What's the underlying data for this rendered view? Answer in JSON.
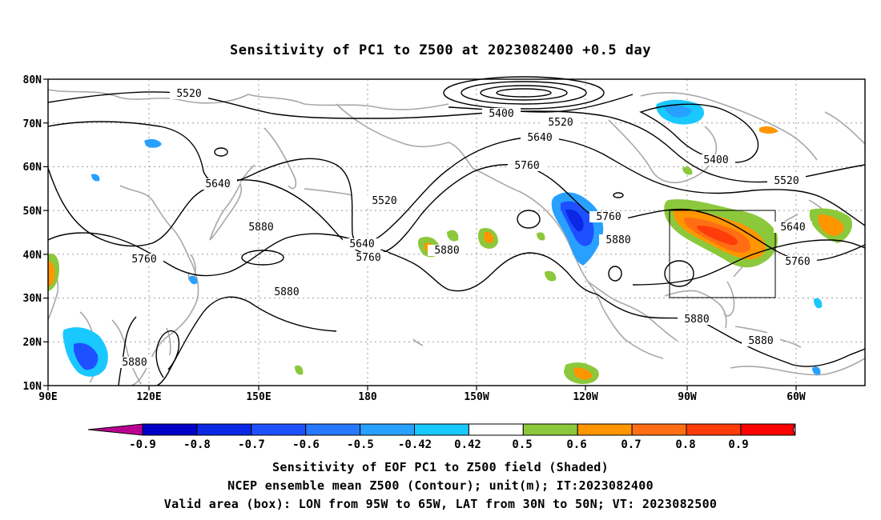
{
  "title": "Sensitivity of PC1 to Z500 at 2023082400 +0.5 day",
  "lat_ticks": [
    "80N",
    "70N",
    "60N",
    "50N",
    "40N",
    "30N",
    "20N",
    "10N"
  ],
  "lon_ticks": [
    "90E",
    "120E",
    "150E",
    "180",
    "150W",
    "120W",
    "90W",
    "60W"
  ],
  "contour_labels": [
    "5520",
    "5400",
    "5520",
    "5640",
    "5760",
    "5640",
    "5520",
    "5880",
    "5640",
    "5760",
    "5880",
    "5760",
    "5880",
    "5760",
    "5880",
    "5400",
    "5520",
    "5640",
    "5760",
    "5880",
    "5880",
    "5880"
  ],
  "colorbar": {
    "labels": [
      "-0.9",
      "-0.8",
      "-0.7",
      "-0.6",
      "-0.5",
      "-0.42",
      "0.42",
      "0.5",
      "0.6",
      "0.7",
      "0.8",
      "0.9"
    ],
    "colors": [
      "#ba0090",
      "#0000c8",
      "#0a28e6",
      "#1e50ff",
      "#2878ff",
      "#28a0ff",
      "#19c8ff",
      "#ffffff",
      "#8cc83c",
      "#ff9600",
      "#ff6e14",
      "#ff3c0a",
      "#ff0000",
      "#ffa0c8"
    ]
  },
  "valid_box": {
    "lon_from": "95W",
    "lon_to": "65W",
    "lat_from": "30N",
    "lat_to": "50N"
  },
  "footer": {
    "line1": "Sensitivity of EOF PC1 to Z500 field (Shaded)",
    "line2": "NCEP ensemble mean Z500 (Contour); unit(m); IT:2023082400",
    "line3": "Valid area (box): LON from 95W to 65W, LAT from 30N to 50N; VT: 2023082500"
  }
}
